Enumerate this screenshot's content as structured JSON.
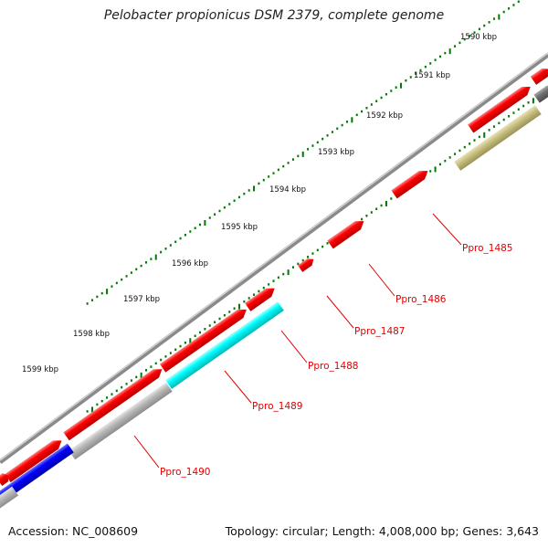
{
  "title": "Pelobacter propionicus DSM 2379, complete genome",
  "footer": {
    "accession": "Accession: NC_008609",
    "stats": "Topology: circular; Length: 4,008,000 bp; Genes: 3,643"
  },
  "scale_labels": [
    "1590 kbp",
    "1591 kbp",
    "1592 kbp",
    "1593 kbp",
    "1594 kbp",
    "1595 kbp",
    "1596 kbp",
    "1597 kbp",
    "1598 kbp",
    "1599 kbp"
  ],
  "gene_labels": [
    "Ppro_1485",
    "Ppro_1486",
    "Ppro_1487",
    "Ppro_1488",
    "Ppro_1489",
    "Ppro_1490"
  ],
  "colors": {
    "backbone": "#808080",
    "cds_red": "#ff0000",
    "cyan": "#00ffff",
    "olive": "#c8c080",
    "blue": "#0000ff",
    "gray_feature": "#b4b4b4",
    "dark_gray": "#707070",
    "ticks": "#007700",
    "label_red": "#e00000"
  }
}
